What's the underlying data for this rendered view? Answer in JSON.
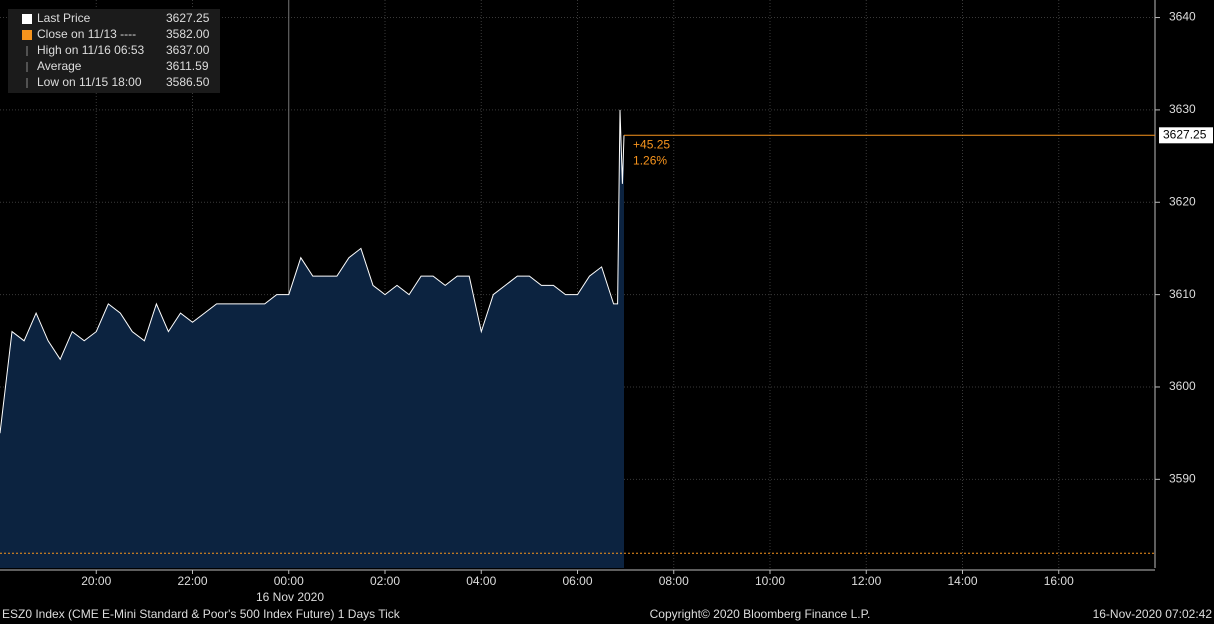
{
  "chart_data": {
    "type": "area",
    "series": [
      {
        "name": "Last Price",
        "color": "#ffffff",
        "fill": "#0c2340",
        "x": [
          "18:00",
          "18:15",
          "18:30",
          "18:45",
          "19:00",
          "19:15",
          "19:30",
          "19:45",
          "20:00",
          "20:15",
          "20:30",
          "20:45",
          "21:00",
          "21:15",
          "21:30",
          "21:45",
          "22:00",
          "22:15",
          "22:30",
          "22:45",
          "23:00",
          "23:15",
          "23:30",
          "23:45",
          "00:00",
          "00:15",
          "00:30",
          "00:45",
          "01:00",
          "01:15",
          "01:30",
          "01:45",
          "02:00",
          "02:15",
          "02:30",
          "02:45",
          "03:00",
          "03:15",
          "03:30",
          "03:45",
          "04:00",
          "04:15",
          "04:30",
          "04:45",
          "05:00",
          "05:15",
          "05:30",
          "05:45",
          "06:00",
          "06:15",
          "06:30",
          "06:45",
          "06:50",
          "06:53",
          "06:56",
          "06:58"
        ],
        "values": [
          3595,
          3606,
          3605,
          3608,
          3605,
          3603,
          3606,
          3605,
          3606,
          3609,
          3608,
          3606,
          3605,
          3609,
          3606,
          3608,
          3607,
          3608,
          3609,
          3609,
          3609,
          3609,
          3609,
          3610,
          3610,
          3614,
          3612,
          3612,
          3612,
          3614,
          3615,
          3611,
          3610,
          3611,
          3610,
          3612,
          3612,
          3611,
          3612,
          3612,
          3606,
          3610,
          3611,
          3612,
          3612,
          3611,
          3611,
          3610,
          3610,
          3612,
          3613,
          3609,
          3609,
          3630,
          3622,
          3627.25
        ]
      }
    ],
    "legend": [
      {
        "name": "Last Price",
        "value": 3627.25
      },
      {
        "name": "Close on 11/13 ----",
        "value": {
          "value": 3582,
          "label": "3582.00"
        }
      },
      {
        "name": "High on 11/16 06:53",
        "value": {
          "value": 3637,
          "label": "3637.00"
        }
      },
      {
        "name": "Average",
        "value": 3611.59
      },
      {
        "name": "Low on 11/15 18:00",
        "value": {
          "value": 3586.5,
          "label": "3586.50"
        }
      }
    ],
    "annotations": [
      "+45.25",
      "1.26%"
    ],
    "close_color": "#f7941d",
    "xlim": [
      "18:00",
      "18:00"
    ],
    "xticks": [
      "20:00",
      "22:00",
      "00:00",
      "02:00",
      "04:00",
      "06:00",
      "08:00",
      "10:00",
      "12:00",
      "14:00",
      "16:00"
    ],
    "date_label": "16 Nov 2020",
    "ylim": [
      3580.4,
      3641.9
    ],
    "yticks": [
      3590,
      3600,
      3610,
      3620,
      3630,
      3640
    ],
    "grid": true,
    "footer": {
      "left": "ESZ0 Index (CME E-Mini Standard & Poor's 500 Index Future) 1 Days  Tick",
      "center": "Copyright© 2020 Bloomberg Finance L.P.",
      "right": "16-Nov-2020 07:02:42"
    }
  }
}
